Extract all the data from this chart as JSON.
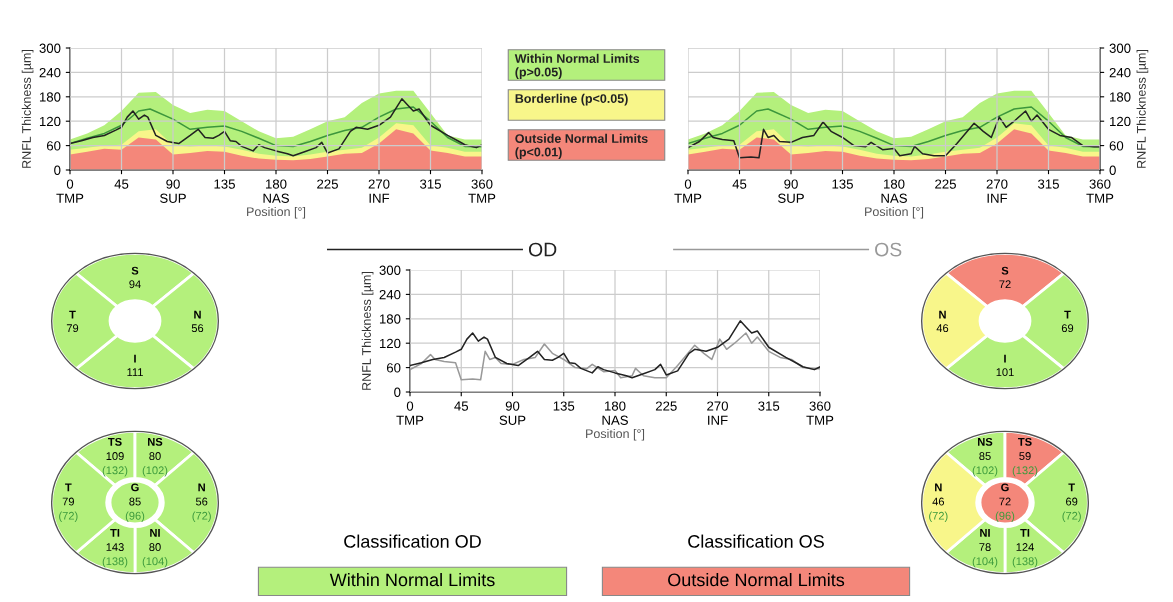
{
  "chart_data": [
    {
      "type": "line",
      "ylabel": "RNFL Thickness [µm]",
      "xlabel": "Position [°]",
      "xlim": [
        0,
        360
      ],
      "ylim": [
        0,
        300
      ],
      "yticks": [
        0,
        60,
        120,
        180,
        240,
        300
      ],
      "xticks": [
        {
          "value": 0,
          "label": "0\nTMP"
        },
        45,
        {
          "value": 90,
          "label": "90\nSUP"
        },
        135,
        {
          "value": 180,
          "label": "180\nNAS"
        },
        225,
        {
          "value": 270,
          "label": "270\nINF"
        },
        315,
        {
          "value": 360,
          "label": "360\nTMP"
        }
      ],
      "grid": true,
      "series": [
        {
          "type": "area",
          "color": "#b4f07c",
          "x": [
            0,
            15,
            30,
            45,
            60,
            75,
            90,
            105,
            120,
            135,
            150,
            165,
            180,
            195,
            210,
            225,
            240,
            255,
            270,
            285,
            300,
            315,
            330,
            345,
            360
          ],
          "values": [
            75,
            90,
            110,
            145,
            190,
            192,
            160,
            140,
            148,
            145,
            120,
            95,
            78,
            82,
            100,
            120,
            130,
            165,
            188,
            195,
            195,
            140,
            85,
            75,
            75
          ]
        },
        {
          "type": "area",
          "color": "#f8f68a",
          "x": [
            0,
            15,
            30,
            45,
            60,
            75,
            90,
            105,
            120,
            135,
            150,
            165,
            180,
            195,
            210,
            225,
            240,
            255,
            270,
            285,
            300,
            315,
            330,
            345,
            360
          ],
          "values": [
            50,
            55,
            60,
            62,
            95,
            100,
            60,
            58,
            60,
            58,
            50,
            40,
            35,
            33,
            38,
            45,
            50,
            55,
            80,
            115,
            110,
            60,
            55,
            45,
            45
          ]
        },
        {
          "type": "area",
          "color": "#f4877a",
          "x": [
            0,
            15,
            30,
            45,
            60,
            75,
            90,
            105,
            120,
            135,
            150,
            165,
            180,
            195,
            210,
            225,
            240,
            255,
            270,
            285,
            300,
            315,
            330,
            345,
            360
          ],
          "values": [
            38,
            45,
            52,
            50,
            80,
            75,
            38,
            42,
            47,
            45,
            35,
            28,
            25,
            24,
            27,
            33,
            40,
            42,
            65,
            100,
            90,
            48,
            42,
            33,
            33
          ]
        },
        {
          "type": "line",
          "color": "#3c963c",
          "x": [
            0,
            15,
            30,
            45,
            60,
            70,
            90,
            105,
            120,
            135,
            150,
            165,
            180,
            195,
            210,
            225,
            240,
            255,
            270,
            285,
            300,
            315,
            330,
            345,
            360
          ],
          "values": [
            65,
            78,
            90,
            110,
            145,
            150,
            125,
            100,
            105,
            108,
            95,
            78,
            60,
            58,
            70,
            85,
            97,
            105,
            130,
            150,
            155,
            120,
            80,
            58,
            57
          ]
        },
        {
          "type": "line",
          "color": "#222222",
          "x": [
            0,
            10,
            20,
            30,
            40,
            45,
            50,
            55,
            60,
            65,
            68,
            75,
            85,
            95,
            105,
            112,
            118,
            125,
            130,
            135,
            140,
            145,
            150,
            160,
            165,
            170,
            180,
            190,
            195,
            205,
            215,
            220,
            225,
            235,
            245,
            250,
            260,
            270,
            280,
            290,
            295,
            300,
            305,
            315,
            330,
            340,
            345,
            355,
            360
          ],
          "values": [
            65,
            72,
            80,
            85,
            98,
            105,
            130,
            145,
            125,
            135,
            130,
            85,
            70,
            65,
            85,
            100,
            80,
            78,
            85,
            95,
            72,
            70,
            58,
            47,
            62,
            55,
            47,
            40,
            35,
            45,
            55,
            68,
            42,
            52,
            95,
            105,
            100,
            110,
            130,
            175,
            160,
            145,
            150,
            110,
            85,
            70,
            62,
            55,
            62
          ]
        }
      ]
    },
    {
      "type": "other",
      "categories": [
        "Within Normal Limits\n(p>0.05)",
        "Borderline (p<0.05)",
        "Outside Normal Limits\n(p<0.01)"
      ],
      "colors": [
        "#b4f07c",
        "#f8f68a",
        "#f4877a"
      ]
    },
    {
      "type": "line",
      "y2label": "RNFL Thickness [µm]",
      "xlabel": "Position [°]",
      "xlim": [
        0,
        360
      ],
      "y2lim": [
        0,
        300
      ],
      "y2ticks": [
        0,
        60,
        120,
        180,
        240,
        300
      ],
      "xticks": [
        {
          "value": 0,
          "label": "0\nTMP"
        },
        45,
        {
          "value": 90,
          "label": "90\nSUP"
        },
        135,
        {
          "value": 180,
          "label": "180\nNAS"
        },
        225,
        {
          "value": 270,
          "label": "270\nINF"
        },
        315,
        {
          "value": 360,
          "label": "360\nTMP"
        }
      ],
      "grid": true,
      "series": [
        {
          "type": "area",
          "axis": "y2",
          "color": "#b4f07c",
          "x": [
            0,
            15,
            30,
            45,
            60,
            75,
            90,
            105,
            120,
            135,
            150,
            165,
            180,
            195,
            210,
            225,
            240,
            255,
            270,
            285,
            300,
            315,
            330,
            345,
            360
          ],
          "values": [
            75,
            90,
            110,
            145,
            190,
            192,
            160,
            140,
            148,
            145,
            120,
            95,
            78,
            82,
            100,
            120,
            130,
            165,
            188,
            195,
            195,
            140,
            85,
            75,
            75
          ]
        },
        {
          "type": "area",
          "axis": "y2",
          "color": "#f8f68a",
          "x": [
            0,
            15,
            30,
            45,
            60,
            75,
            90,
            105,
            120,
            135,
            150,
            165,
            180,
            195,
            210,
            225,
            240,
            255,
            270,
            285,
            300,
            315,
            330,
            345,
            360
          ],
          "values": [
            50,
            55,
            60,
            62,
            95,
            100,
            60,
            58,
            60,
            58,
            50,
            40,
            35,
            33,
            38,
            45,
            50,
            55,
            80,
            115,
            110,
            60,
            55,
            45,
            45
          ]
        },
        {
          "type": "area",
          "axis": "y2",
          "color": "#f4877a",
          "x": [
            0,
            15,
            30,
            45,
            60,
            75,
            90,
            105,
            120,
            135,
            150,
            165,
            180,
            195,
            210,
            225,
            240,
            255,
            270,
            285,
            300,
            315,
            330,
            345,
            360
          ],
          "values": [
            38,
            45,
            52,
            50,
            80,
            75,
            38,
            42,
            47,
            45,
            35,
            28,
            25,
            24,
            27,
            33,
            40,
            42,
            65,
            100,
            90,
            48,
            42,
            33,
            33
          ]
        },
        {
          "type": "line",
          "axis": "y2",
          "color": "#3c963c",
          "x": [
            0,
            15,
            30,
            45,
            60,
            70,
            90,
            105,
            120,
            135,
            150,
            165,
            180,
            195,
            210,
            225,
            240,
            255,
            270,
            285,
            300,
            315,
            330,
            345,
            360
          ],
          "values": [
            65,
            78,
            90,
            110,
            145,
            150,
            125,
            100,
            105,
            108,
            95,
            78,
            60,
            58,
            70,
            85,
            97,
            105,
            130,
            150,
            155,
            120,
            80,
            58,
            57
          ]
        },
        {
          "type": "line",
          "axis": "y2",
          "color": "#222222",
          "x": [
            0,
            10,
            18,
            22,
            30,
            40,
            45,
            55,
            62,
            66,
            70,
            75,
            80,
            90,
            100,
            110,
            118,
            125,
            135,
            145,
            155,
            160,
            170,
            180,
            185,
            195,
            198,
            205,
            215,
            225,
            235,
            250,
            258,
            265,
            272,
            278,
            285,
            295,
            300,
            305,
            315,
            325,
            335,
            345,
            355,
            360
          ],
          "values": [
            55,
            70,
            92,
            80,
            75,
            72,
            30,
            32,
            30,
            100,
            80,
            85,
            70,
            68,
            80,
            85,
            118,
            95,
            80,
            60,
            57,
            68,
            50,
            53,
            35,
            40,
            58,
            40,
            35,
            35,
            65,
            115,
            95,
            80,
            130,
            105,
            120,
            145,
            120,
            135,
            100,
            85,
            80,
            60,
            57,
            57
          ]
        }
      ]
    },
    {
      "type": "line",
      "ylabel": "RNFL Thickness [µm]",
      "xlabel": "Position [°]",
      "xlim": [
        0,
        360
      ],
      "ylim": [
        0,
        300
      ],
      "yticks": [
        0,
        60,
        120,
        180,
        240,
        300
      ],
      "xticks": [
        {
          "value": 0,
          "label": "0\nTMP"
        },
        45,
        {
          "value": 90,
          "label": "90\nSUP"
        },
        135,
        {
          "value": 180,
          "label": "180\nNAS"
        },
        225,
        {
          "value": 270,
          "label": "270\nINF"
        },
        315,
        {
          "value": 360,
          "label": "360\nTMP"
        }
      ],
      "grid": true,
      "legend": "top",
      "series": [
        {
          "name": "OD",
          "color": "#222222",
          "x": [
            0,
            10,
            20,
            30,
            40,
            45,
            50,
            55,
            60,
            65,
            68,
            75,
            85,
            95,
            105,
            112,
            118,
            125,
            130,
            135,
            140,
            145,
            150,
            160,
            165,
            170,
            180,
            190,
            195,
            205,
            215,
            220,
            225,
            235,
            245,
            250,
            260,
            270,
            280,
            290,
            295,
            300,
            305,
            315,
            330,
            340,
            345,
            355,
            360
          ],
          "values": [
            65,
            72,
            80,
            85,
            98,
            105,
            130,
            145,
            125,
            135,
            130,
            85,
            70,
            65,
            85,
            100,
            80,
            78,
            85,
            95,
            72,
            70,
            58,
            47,
            62,
            55,
            47,
            40,
            35,
            45,
            55,
            68,
            42,
            52,
            95,
            105,
            100,
            110,
            130,
            175,
            160,
            145,
            150,
            110,
            85,
            70,
            62,
            55,
            62
          ]
        },
        {
          "name": "OS",
          "color": "#999999",
          "x": [
            0,
            10,
            18,
            22,
            30,
            40,
            45,
            55,
            62,
            66,
            70,
            75,
            80,
            90,
            100,
            110,
            118,
            125,
            135,
            145,
            155,
            160,
            170,
            180,
            185,
            195,
            198,
            205,
            215,
            225,
            235,
            250,
            258,
            265,
            272,
            278,
            285,
            295,
            300,
            305,
            315,
            325,
            335,
            345,
            355,
            360
          ],
          "values": [
            55,
            70,
            92,
            80,
            75,
            72,
            30,
            32,
            30,
            100,
            80,
            85,
            70,
            68,
            80,
            85,
            118,
            95,
            80,
            60,
            57,
            68,
            50,
            53,
            35,
            40,
            58,
            40,
            35,
            35,
            65,
            115,
            95,
            80,
            130,
            105,
            120,
            145,
            120,
            135,
            100,
            85,
            80,
            60,
            57,
            57
          ]
        }
      ]
    },
    {
      "type": "other",
      "categories": [
        "S",
        "N",
        "I",
        "T"
      ],
      "values": [
        94,
        56,
        111,
        79
      ],
      "data_labels": true,
      "colors": [
        "#b4f07c",
        "#b4f07c",
        "#b4f07c",
        "#b4f07c"
      ]
    },
    {
      "type": "other",
      "categories": [
        "S",
        "T",
        "I",
        "N"
      ],
      "values": [
        72,
        69,
        101,
        46
      ],
      "data_labels": true,
      "colors": [
        "#f4877a",
        "#b4f07c",
        "#b4f07c",
        "#f8f68a"
      ]
    },
    {
      "type": "other",
      "categories": [
        "TS",
        "NS",
        "N",
        "NI",
        "TI",
        "T",
        "G"
      ],
      "values": [
        109,
        80,
        56,
        80,
        143,
        79,
        85
      ],
      "data_labels": true,
      "colors": [
        "#b4f07c",
        "#b4f07c",
        "#b4f07c",
        "#b4f07c",
        "#b4f07c",
        "#b4f07c",
        "#b4f07c"
      ],
      "annotations": [
        "(132)",
        "(102)",
        "(72)",
        "(104)",
        "(138)",
        "(72)",
        "(96)"
      ]
    },
    {
      "type": "other",
      "categories": [
        "NS",
        "TS",
        "T",
        "TI",
        "NI",
        "N",
        "G"
      ],
      "values": [
        85,
        59,
        69,
        124,
        78,
        46,
        72
      ],
      "data_labels": true,
      "colors": [
        "#b4f07c",
        "#f4877a",
        "#b4f07c",
        "#b4f07c",
        "#b4f07c",
        "#f8f68a",
        "#f4877a"
      ],
      "annotations": [
        "(102)",
        "(132)",
        "(72)",
        "(138)",
        "(104)",
        "(72)",
        "(96)"
      ]
    },
    {
      "type": "other",
      "title": "Classification OD",
      "categories": [
        "Within Normal Limits"
      ],
      "colors": [
        "#b4f07c"
      ]
    },
    {
      "type": "other",
      "title": "Classification OS",
      "categories": [
        "Outside Normal Limits"
      ],
      "colors": [
        "#f4877a"
      ]
    }
  ]
}
